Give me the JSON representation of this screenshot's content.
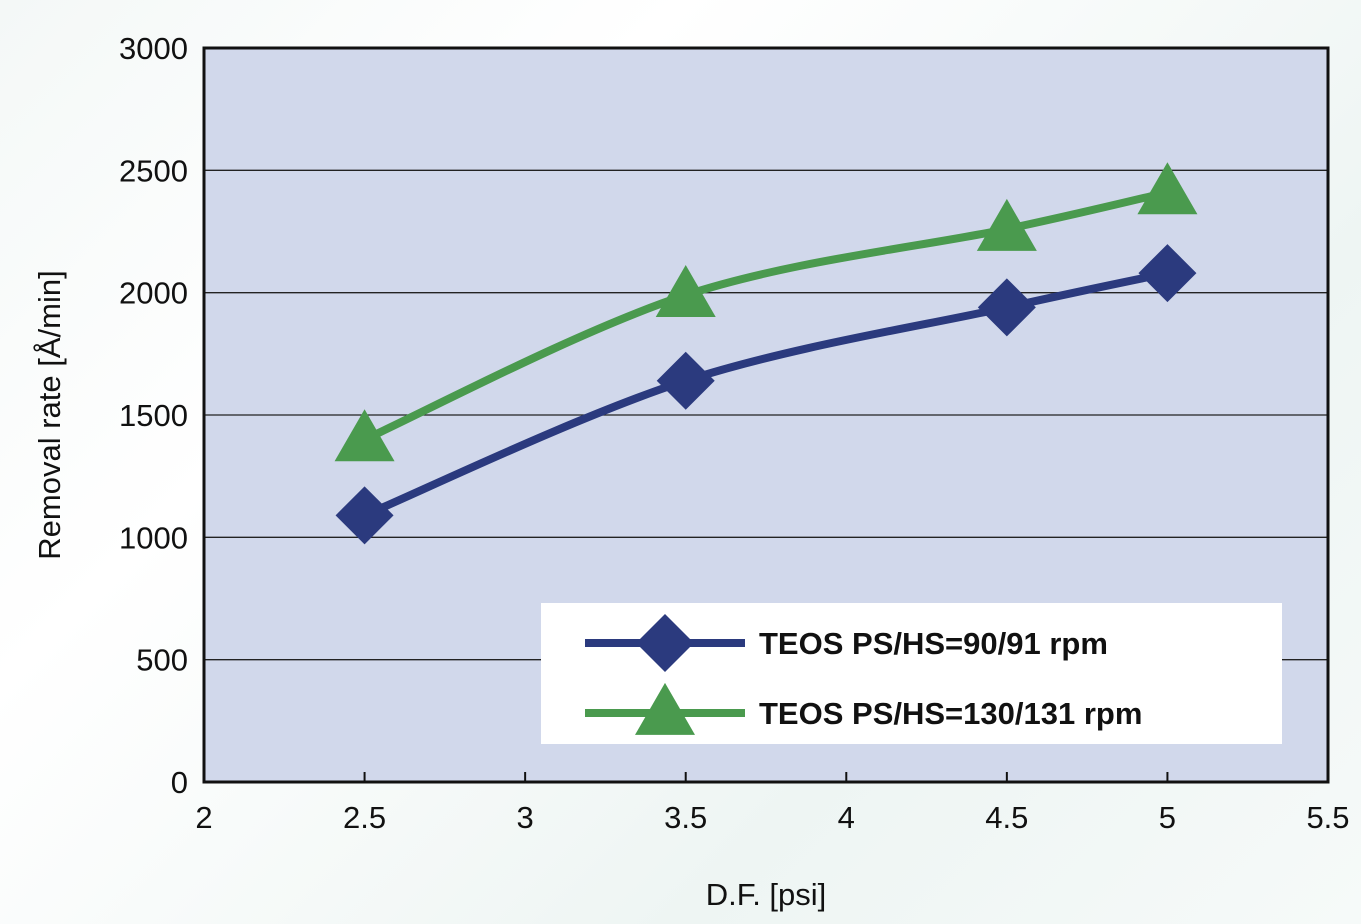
{
  "chart_data": {
    "type": "line",
    "xlabel": "D.F. [psi]",
    "ylabel": "Removal rate [Å/min]",
    "xlim": [
      2,
      5.5
    ],
    "ylim": [
      0,
      3000
    ],
    "xticks": [
      "2",
      "2.5",
      "3",
      "3.5",
      "4",
      "4.5",
      "5",
      "5.5"
    ],
    "yticks": [
      "0",
      "500",
      "1000",
      "1500",
      "2000",
      "2500",
      "3000"
    ],
    "grid": "horizontal",
    "legend_position": "bottom-right",
    "series": [
      {
        "name": "TEOS PS/HS=90/91 rpm",
        "marker": "diamond",
        "color": "#2b3a7e",
        "x": [
          2.5,
          3.5,
          4.5,
          5
        ],
        "y": [
          1090,
          1640,
          1940,
          2080
        ]
      },
      {
        "name": "TEOS PS/HS=130/131 rpm",
        "marker": "triangle",
        "color": "#4a9a4e",
        "x": [
          2.5,
          3.5,
          4.5,
          5
        ],
        "y": [
          1400,
          1990,
          2260,
          2410
        ]
      }
    ],
    "plot_background": "#d1d8eb"
  }
}
